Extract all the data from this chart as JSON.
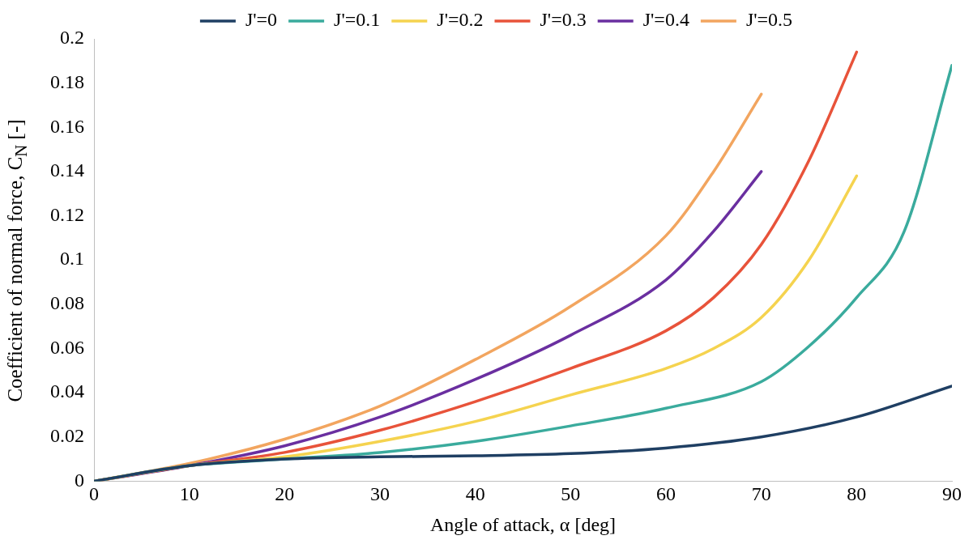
{
  "chart_data": {
    "type": "line",
    "xlabel": "Angle of attack, α [deg]",
    "ylabel": "Coefficient of normal force, C$_{N}$ [-]",
    "xlim": [
      0,
      90
    ],
    "xticks": [
      0,
      10,
      20,
      30,
      40,
      50,
      60,
      70,
      80,
      90
    ],
    "ylim": [
      0,
      0.2
    ],
    "yticks": [
      0,
      0.02,
      0.04,
      0.06,
      0.08,
      0.1,
      0.12,
      0.14,
      0.16,
      0.18,
      0.2
    ],
    "grid": false,
    "legend": "top",
    "marker": "none",
    "line_style": "solid",
    "series": [
      {
        "name": "J'=0",
        "color": "#1f3f63",
        "x": [
          0,
          10,
          20,
          30,
          40,
          50,
          60,
          70,
          80,
          90
        ],
        "values": [
          0,
          0.007,
          0.01,
          0.011,
          0.0115,
          0.0125,
          0.015,
          0.02,
          0.029,
          0.043
        ]
      },
      {
        "name": "J'=0.1",
        "color": "#3aab9d",
        "x": [
          0,
          10,
          20,
          30,
          40,
          50,
          60,
          70,
          75,
          80,
          85,
          90
        ],
        "values": [
          0,
          0.007,
          0.01,
          0.013,
          0.018,
          0.025,
          0.033,
          0.045,
          0.061,
          0.083,
          0.113,
          0.188
        ]
      },
      {
        "name": "J'=0.2",
        "color": "#f5d34f",
        "x": [
          0,
          10,
          20,
          30,
          40,
          50,
          60,
          65,
          70,
          75,
          80
        ],
        "values": [
          0,
          0.007,
          0.011,
          0.018,
          0.027,
          0.039,
          0.051,
          0.06,
          0.074,
          0.1,
          0.138
        ]
      },
      {
        "name": "J'=0.3",
        "color": "#e8533a",
        "x": [
          0,
          10,
          20,
          30,
          40,
          50,
          60,
          65,
          70,
          75,
          80
        ],
        "values": [
          0,
          0.007,
          0.013,
          0.023,
          0.036,
          0.051,
          0.068,
          0.083,
          0.107,
          0.145,
          0.194
        ]
      },
      {
        "name": "J'=0.4",
        "color": "#6a2fa0",
        "x": [
          0,
          10,
          20,
          30,
          40,
          50,
          60,
          65,
          70
        ],
        "values": [
          0,
          0.007,
          0.016,
          0.029,
          0.046,
          0.066,
          0.091,
          0.113,
          0.14
        ]
      },
      {
        "name": "J'=0.5",
        "color": "#f2a55f",
        "x": [
          0,
          10,
          20,
          30,
          40,
          50,
          60,
          65,
          70
        ],
        "values": [
          0,
          0.008,
          0.019,
          0.034,
          0.055,
          0.079,
          0.111,
          0.14,
          0.175
        ]
      }
    ]
  }
}
